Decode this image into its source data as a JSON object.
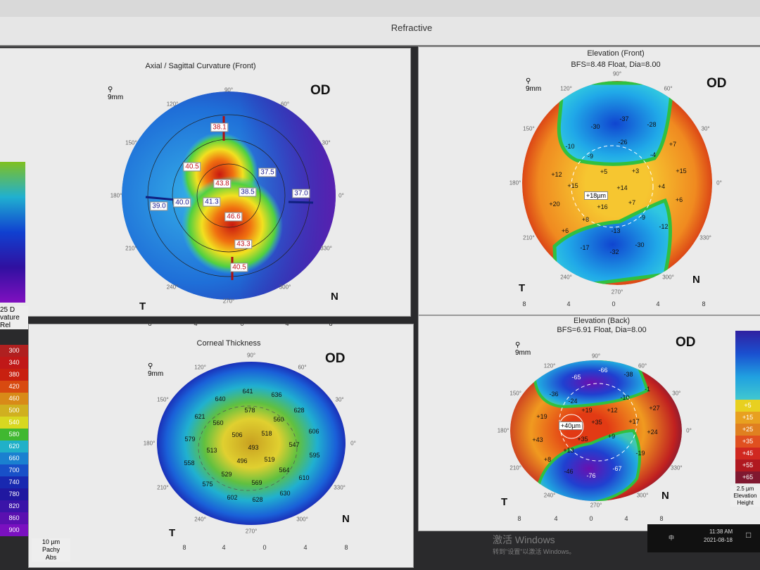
{
  "window": {
    "title": "Refractive"
  },
  "colors": {
    "accent_red": "#c0101a",
    "accent_blue": "#1a1a90"
  },
  "maps": {
    "axial": {
      "title": "Axial / Sagittal Curvature (Front)",
      "eye": "OD",
      "zoom": "9mm",
      "nasal": "N",
      "temporal": "T",
      "labels": [
        "38.1",
        "40.5",
        "43.8",
        "37.5",
        "38.5",
        "37.0",
        "39.0",
        "40.0",
        "41.3",
        "46.6",
        "43.3",
        "40.5"
      ],
      "ring_labels": [
        "7",
        "5",
        "3",
        "3",
        "5"
      ]
    },
    "elev_front": {
      "title": "Elevation (Front)",
      "subtitle": "BFS=8.48 Float, Dia=8.00",
      "eye": "OD",
      "zoom": "9mm",
      "nasal": "N",
      "temporal": "T",
      "center": "+18µm",
      "labels": [
        "-37",
        "-30",
        "-28",
        "-26",
        "-10",
        "-9",
        "-4",
        "+7",
        "+12",
        "+5",
        "+3",
        "+15",
        "+15",
        "+14",
        "+4",
        "+20",
        "+16",
        "+7",
        "+6",
        "+8",
        "-9",
        "-12",
        "+6",
        "-13",
        "-17",
        "-32",
        "-30"
      ]
    },
    "thickness": {
      "title": "Corneal Thickness",
      "eye": "OD",
      "zoom": "9mm",
      "nasal": "N",
      "temporal": "T",
      "labels": [
        "641",
        "636",
        "640",
        "578",
        "628",
        "621",
        "560",
        "560",
        "506",
        "518",
        "606",
        "579",
        "513",
        "493",
        "547",
        "595",
        "558",
        "496",
        "519",
        "564",
        "529",
        "610",
        "575",
        "569",
        "630",
        "602",
        "628"
      ]
    },
    "elev_back": {
      "title": "Elevation (Back)",
      "subtitle": "BFS=6.91 Float, Dia=8.00",
      "eye": "OD",
      "zoom": "9mm",
      "nasal": "N",
      "temporal": "T",
      "center": "+40µm",
      "labels": [
        "-66",
        "-65",
        "-38",
        "-36",
        "-24",
        "-10",
        "-1",
        "+19",
        "+19",
        "+12",
        "+27",
        "+35",
        "+17",
        "+24",
        "+43",
        "+35",
        "+9",
        "+13",
        "-19",
        "+8",
        "-67",
        "-76",
        "-46"
      ]
    }
  },
  "axis": {
    "ticks": [
      "8",
      "4",
      "0",
      "4",
      "8"
    ],
    "degrees": [
      "90°",
      "60°",
      "30°",
      "0°",
      "330°",
      "300°",
      "270°",
      "240°",
      "210°",
      "180°",
      "150°",
      "120°"
    ]
  },
  "legends": {
    "curvature": {
      "step": "25 D",
      "type": "vature",
      "mode": "Rel"
    },
    "pachy": {
      "values": [
        "300",
        "340",
        "380",
        "420",
        "460",
        "500",
        "540",
        "580",
        "620",
        "660",
        "700",
        "740",
        "780",
        "820",
        "860",
        "900"
      ],
      "step": "10 µm",
      "type": "Pachy",
      "mode": "Abs"
    },
    "elevation": {
      "values": [
        "+5",
        "+15",
        "+25",
        "+35",
        "+45",
        "+55",
        "+65"
      ],
      "step": "2.5 µm",
      "type": "Elevation",
      "mode": "Height"
    }
  },
  "watermark": {
    "line1": "激活 Windows",
    "line2": "转到\"设置\"以激活 Windows。"
  },
  "taskbar": {
    "time": "11:38 AM",
    "date": "2021-08-18",
    "ime": "中"
  }
}
